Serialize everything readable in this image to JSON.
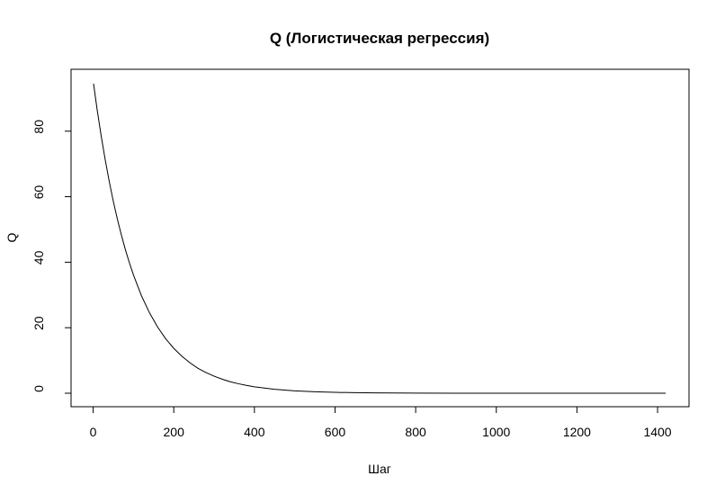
{
  "chart_data": {
    "type": "line",
    "title": "Q (Логистическая регрессия)",
    "xlabel": "Шаг",
    "ylabel": "Q",
    "xlim": [
      1,
      1420
    ],
    "ylim": [
      0,
      94.5
    ],
    "x_ticks": [
      0,
      200,
      400,
      600,
      800,
      1000,
      1200,
      1400
    ],
    "y_ticks": [
      0,
      20,
      40,
      60,
      80
    ],
    "x_tick_labels": [
      "0",
      "200",
      "400",
      "600",
      "800",
      "1000",
      "1200",
      "1400"
    ],
    "y_tick_labels": [
      "0",
      "20",
      "40",
      "60",
      "80"
    ],
    "grid": false,
    "legend": "none",
    "series": [
      {
        "x": [
          1,
          10,
          20,
          30,
          40,
          50,
          60,
          70,
          80,
          90,
          100,
          120,
          140,
          160,
          180,
          200,
          220,
          240,
          260,
          280,
          300,
          320,
          340,
          360,
          380,
          400,
          450,
          500,
          550,
          600,
          650,
          700,
          750,
          800,
          900,
          1000,
          1100,
          1200,
          1300,
          1420
        ],
        "y": [
          94.5,
          86.5,
          78.5,
          71.2,
          64.6,
          58.6,
          53.2,
          48.3,
          43.8,
          39.8,
          36.1,
          29.7,
          24.5,
          20.2,
          16.6,
          13.7,
          11.3,
          9.3,
          7.6,
          6.3,
          5.2,
          4.3,
          3.5,
          2.9,
          2.4,
          1.97,
          1.2,
          0.72,
          0.44,
          0.27,
          0.16,
          0.1,
          0.06,
          0.04,
          0.013,
          0.005,
          0.002,
          0.001,
          0.0003,
          0.0001
        ],
        "color": "#000000"
      }
    ]
  }
}
